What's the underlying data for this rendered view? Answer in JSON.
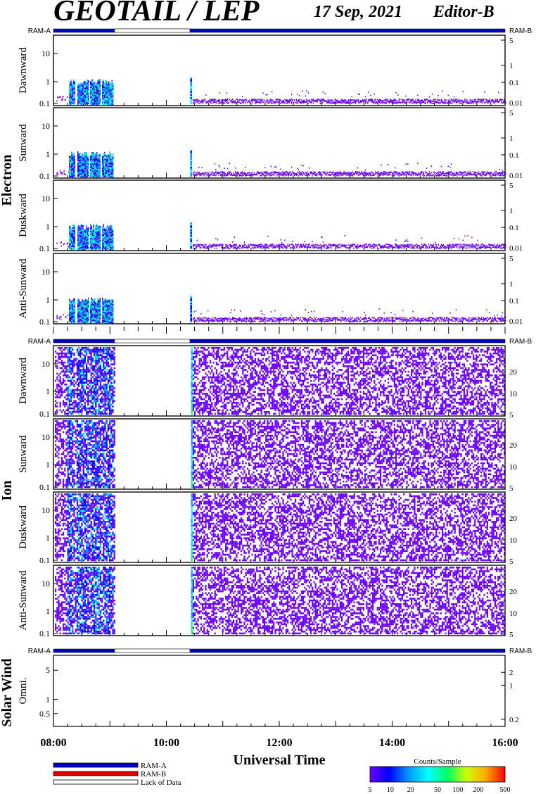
{
  "header": {
    "title": "GEOTAIL / LEP",
    "date": "17 Sep, 2021",
    "editor": "Editor-B"
  },
  "colors": {
    "ram_a": "#0000cc",
    "ram_b": "#dd0000",
    "lack_of_data": "#ffffff"
  },
  "labels": {
    "ram_a": "RAM-A",
    "ram_b": "RAM-B",
    "lack_of_data": "Lack of Data",
    "electron": "Electron",
    "ion": "Ion",
    "solar_wind": "Solar Wind",
    "xlabel": "Universal Time",
    "colorbar_title": "Counts/Sample"
  },
  "chart_data": {
    "type": "heatmap",
    "xlabel": "Universal Time",
    "x_ticks": [
      "08:00",
      "10:00",
      "12:00",
      "14:00",
      "16:00"
    ],
    "xlim": [
      "08:00",
      "16:00"
    ],
    "data_gap": [
      "09:05",
      "10:25"
    ],
    "colorbar": {
      "title": "Counts/Sample",
      "ticks": [
        "5",
        "10",
        "20",
        "50",
        "100",
        "200",
        "500"
      ],
      "colors": [
        "#6a00ff",
        "#0000ff",
        "#0099ff",
        "#00ffff",
        "#00ff66",
        "#ccff00",
        "#ffaa00",
        "#ff0000"
      ]
    },
    "groups": [
      {
        "name": "Electron",
        "panels": [
          {
            "label": "Dawnward",
            "left_ticks": [
              "10",
              "1",
              "0.1"
            ],
            "right_ticks": [
              "5",
              "1",
              "0.1",
              "0.01"
            ]
          },
          {
            "label": "Sunward",
            "left_ticks": [
              "10",
              "1",
              "0.1"
            ],
            "right_ticks": [
              "5",
              "1",
              "0.1",
              "0.01"
            ]
          },
          {
            "label": "Duskward",
            "left_ticks": [
              "10",
              "1",
              "0.1"
            ],
            "right_ticks": [
              "5",
              "1",
              "0.1",
              "0.01"
            ]
          },
          {
            "label": "Anti-Sunward",
            "left_ticks": [
              "10",
              "1",
              "0.1"
            ],
            "right_ticks": [
              "5",
              "1",
              "0.1",
              "0.01"
            ]
          }
        ]
      },
      {
        "name": "Ion",
        "panels": [
          {
            "label": "Dawnward",
            "left_ticks": [
              "10",
              "1",
              "0.1"
            ],
            "right_ticks": [
              "20",
              "10",
              "5"
            ]
          },
          {
            "label": "Sunward",
            "left_ticks": [
              "10",
              "1",
              "0.1"
            ],
            "right_ticks": [
              "20",
              "10",
              "5"
            ]
          },
          {
            "label": "Duskward",
            "left_ticks": [
              "10",
              "1",
              "0.1"
            ],
            "right_ticks": [
              "20",
              "10",
              "5"
            ]
          },
          {
            "label": "Anti-Sunward",
            "left_ticks": [
              "10",
              "1",
              "0.1"
            ],
            "right_ticks": [
              "20",
              "10",
              "5"
            ]
          }
        ]
      },
      {
        "name": "Solar Wind",
        "panels": [
          {
            "label": "Omni.",
            "left_ticks": [
              "5",
              "1",
              "0.5"
            ],
            "right_ticks": [
              "2",
              "1",
              "0.2"
            ]
          }
        ]
      }
    ]
  }
}
